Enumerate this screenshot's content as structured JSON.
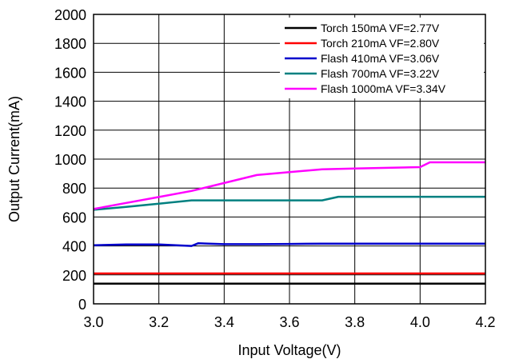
{
  "chart_data": {
    "type": "line",
    "xlabel": "Input Voltage(V)",
    "ylabel": "Output Current(mA)",
    "xlim": [
      3.0,
      4.2
    ],
    "ylim": [
      0,
      2000
    ],
    "xticks": [
      "3.0",
      "3.2",
      "3.4",
      "3.6",
      "3.8",
      "4.0",
      "4.2"
    ],
    "yticks": [
      "0",
      "200",
      "400",
      "600",
      "800",
      "1000",
      "1200",
      "1400",
      "1600",
      "1800",
      "2000"
    ],
    "grid": true,
    "legend_position": "top-right",
    "series": [
      {
        "name": "Torch 150mA VF=2.77V",
        "color": "#000000",
        "x": [
          3.0,
          4.2
        ],
        "y": [
          140,
          140
        ]
      },
      {
        "name": "Torch 210mA VF=2.80V",
        "color": "#ff0000",
        "x": [
          3.0,
          4.2
        ],
        "y": [
          210,
          210
        ]
      },
      {
        "name": "Flash 410mA VF=3.06V",
        "color": "#0000cc",
        "x": [
          3.0,
          3.1,
          3.2,
          3.3,
          3.32,
          3.4,
          3.5,
          3.6,
          3.7,
          3.8,
          3.9,
          4.0,
          4.1,
          4.2
        ],
        "y": [
          405,
          410,
          410,
          400,
          418,
          412,
          412,
          414,
          416,
          416,
          416,
          416,
          416,
          416
        ]
      },
      {
        "name": "Flash 700mA VF=3.22V",
        "color": "#008080",
        "x": [
          3.0,
          3.1,
          3.2,
          3.3,
          3.4,
          3.5,
          3.6,
          3.7,
          3.75,
          3.8,
          3.9,
          4.0,
          4.1,
          4.2
        ],
        "y": [
          650,
          670,
          692,
          715,
          715,
          715,
          715,
          715,
          740,
          740,
          740,
          740,
          740,
          740
        ]
      },
      {
        "name": "Flash 1000mA VF=3.34V",
        "color": "#ff00ff",
        "x": [
          3.0,
          3.1,
          3.2,
          3.3,
          3.4,
          3.5,
          3.6,
          3.7,
          3.8,
          3.9,
          4.0,
          4.03,
          4.1,
          4.2
        ],
        "y": [
          655,
          697,
          738,
          780,
          835,
          890,
          910,
          930,
          935,
          940,
          945,
          978,
          978,
          978
        ]
      }
    ]
  }
}
